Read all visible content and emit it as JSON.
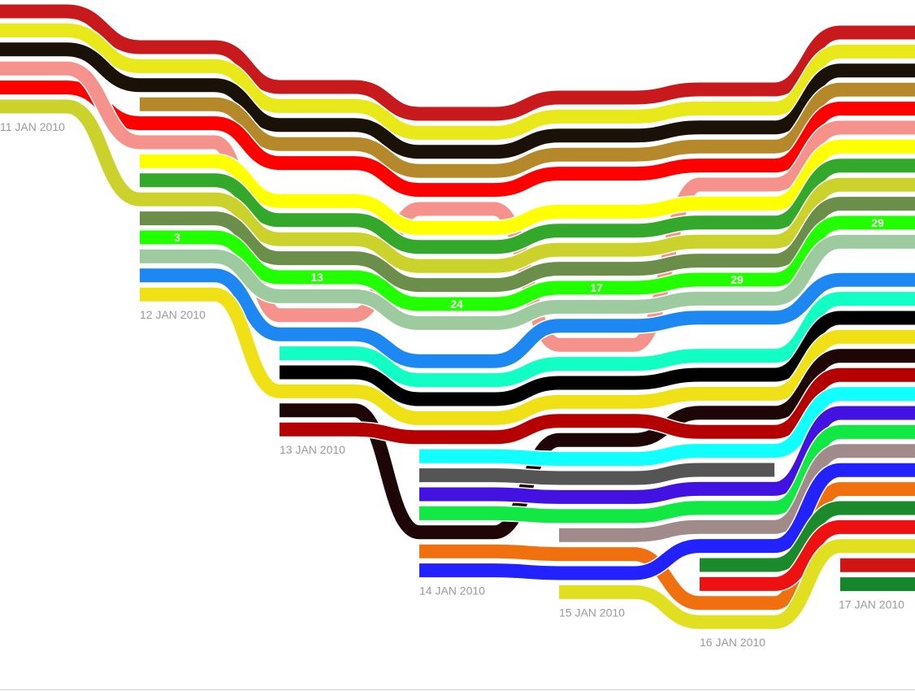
{
  "chart_data": {
    "type": "storyline-flow",
    "title": "",
    "xlabel": "",
    "ylabel": "",
    "x_labels": [
      "11 JAN 2010",
      "12 JAN 2010",
      "13 JAN 2010",
      "14 JAN 2010",
      "15 JAN 2010",
      "16 JAN 2010",
      "17 JAN 2010"
    ],
    "grid": false,
    "legend": "none",
    "series": [
      {
        "color": "#c8191c",
        "rows": [
          0,
          0,
          0,
          0,
          0,
          0,
          0
        ]
      },
      {
        "color": "#e8e81a",
        "rows": [
          1,
          1,
          1,
          1,
          1,
          1,
          1
        ]
      },
      {
        "color": "#1a1208",
        "rows": [
          2,
          2,
          2,
          2,
          2,
          2,
          2
        ]
      },
      {
        "color": "#b5882a",
        "rows": [
          null,
          3,
          3,
          3,
          3,
          3,
          3
        ]
      },
      {
        "color": "#ff0000",
        "rows": [
          4,
          4,
          4,
          4,
          4,
          4,
          4
        ]
      },
      {
        "color": "#f4928b",
        "rows": [
          3,
          5,
          12,
          5,
          13,
          5,
          5
        ]
      },
      {
        "color": "#ffff00",
        "rows": [
          null,
          6,
          6,
          6,
          6,
          6,
          6
        ]
      },
      {
        "color": "#33a82a",
        "rows": [
          null,
          7,
          7,
          7,
          7,
          7,
          7
        ]
      },
      {
        "color": "#ccd22c",
        "rows": [
          5,
          8,
          8,
          8,
          8,
          8,
          8
        ]
      },
      {
        "color": "#6b8f4a",
        "rows": [
          null,
          9,
          9,
          9,
          9,
          9,
          9
        ]
      },
      {
        "color": "#22ff00",
        "rows": [
          null,
          10,
          10,
          10,
          10,
          10,
          10
        ],
        "labels": [
          "",
          "3",
          "13",
          "24",
          "17",
          "29",
          "29"
        ]
      },
      {
        "color": "#9dcb9f",
        "rows": [
          null,
          11,
          11,
          11,
          11,
          11,
          11
        ]
      },
      {
        "color": "#1e88f2",
        "rows": [
          null,
          12,
          13,
          13,
          12,
          12,
          13
        ]
      },
      {
        "color": "#11ffc4",
        "rows": [
          null,
          null,
          14,
          14,
          14,
          14,
          14
        ]
      },
      {
        "color": "#000000",
        "rows": [
          null,
          null,
          15,
          15,
          15,
          15,
          15
        ]
      },
      {
        "color": "#f0e016",
        "rows": [
          null,
          13,
          16,
          16,
          16,
          16,
          16
        ]
      },
      {
        "color": "#1f0606",
        "rows": [
          null,
          null,
          17,
          22,
          18,
          17,
          17
        ]
      },
      {
        "color": "#b40000",
        "rows": [
          null,
          null,
          18,
          17,
          17,
          18,
          18
        ]
      },
      {
        "color": "#11ffff",
        "rows": [
          null,
          null,
          null,
          18,
          19,
          19,
          19
        ]
      },
      {
        "color": "#555555",
        "rows": [
          null,
          null,
          null,
          19,
          20,
          20,
          null
        ]
      },
      {
        "color": "#4212e0",
        "rows": [
          null,
          null,
          null,
          20,
          21,
          21,
          20
        ]
      },
      {
        "color": "#11e844",
        "rows": [
          null,
          null,
          null,
          21,
          22,
          22,
          21
        ]
      },
      {
        "color": "#a08a8a",
        "rows": [
          null,
          null,
          null,
          null,
          23,
          23,
          22
        ]
      },
      {
        "color": "#f07010",
        "rows": [
          null,
          null,
          null,
          23,
          24,
          27,
          24
        ]
      },
      {
        "color": "#2222ff",
        "rows": [
          null,
          null,
          null,
          24,
          25,
          24,
          23
        ]
      },
      {
        "color": "#1a8a2a",
        "rows": [
          null,
          null,
          null,
          null,
          null,
          25,
          25
        ]
      },
      {
        "color": "#ee1111",
        "rows": [
          null,
          null,
          null,
          null,
          null,
          26,
          26
        ]
      },
      {
        "color": "#e0e020",
        "rows": [
          null,
          null,
          null,
          null,
          26,
          28,
          27
        ]
      },
      {
        "color": "#d01515",
        "rows": [
          null,
          null,
          null,
          null,
          null,
          null,
          28
        ]
      },
      {
        "color": "#17862a",
        "rows": [
          null,
          null,
          null,
          null,
          null,
          null,
          29
        ]
      }
    ]
  }
}
